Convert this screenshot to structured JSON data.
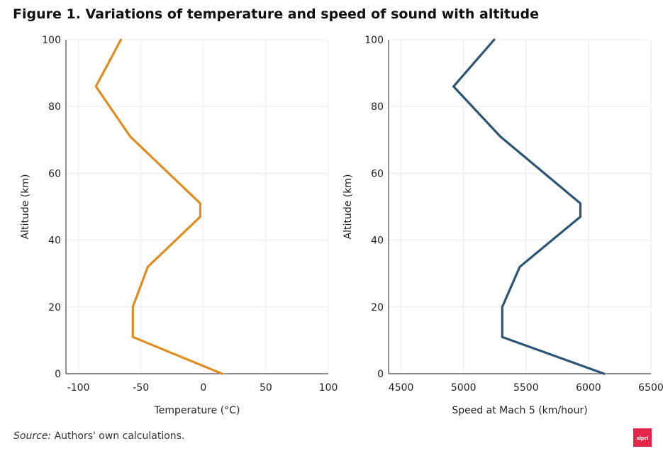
{
  "figure": {
    "title": "Figure 1. Variations of temperature and speed of sound with altitude",
    "source_label": "Source:",
    "source_text": "Authors' own calculations.",
    "logo_text": "sipri"
  },
  "chart_data": [
    {
      "type": "line",
      "xlabel": "Temperature (°C)",
      "ylabel": "Altitude (km)",
      "xlim": [
        -110,
        100
      ],
      "ylim": [
        0,
        100
      ],
      "xticks": [
        -100,
        -50,
        0,
        50,
        100
      ],
      "yticks": [
        0,
        20,
        40,
        60,
        80,
        100
      ],
      "grid": true,
      "color": "#e08c1e",
      "series": [
        {
          "x": [
            15,
            -56.5,
            -56.5,
            -44.5,
            -2.5,
            -2.5,
            -58.5,
            -86,
            -66
          ],
          "y": [
            0,
            11,
            20,
            32,
            47,
            51,
            71,
            86,
            100
          ]
        }
      ]
    },
    {
      "type": "line",
      "xlabel": "Speed at Mach 5 (km/hour)",
      "ylabel": "Altitude (km)",
      "xlim": [
        4400,
        6500
      ],
      "ylim": [
        0,
        100
      ],
      "xticks": [
        4500,
        5000,
        5500,
        6000,
        6500
      ],
      "yticks": [
        0,
        20,
        40,
        60,
        80,
        100
      ],
      "grid": true,
      "color": "#2d5474",
      "series": [
        {
          "x": [
            6125,
            5310,
            5310,
            5450,
            5935,
            5935,
            5295,
            4920,
            5245
          ],
          "y": [
            0,
            11,
            20,
            32,
            47,
            51,
            71,
            86,
            100
          ]
        }
      ]
    }
  ]
}
